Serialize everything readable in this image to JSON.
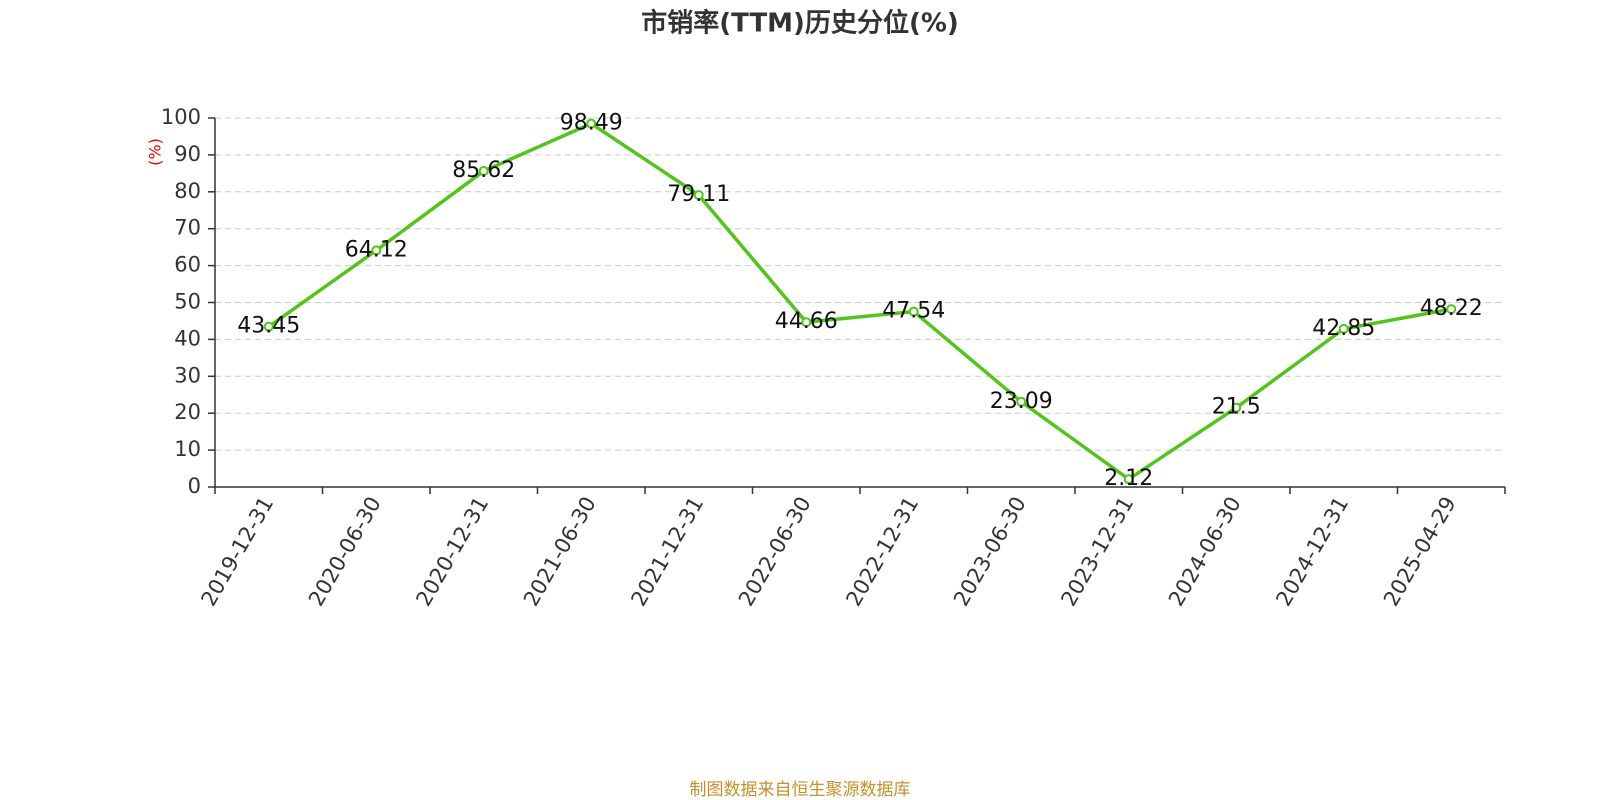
{
  "chart_data": {
    "type": "line",
    "title": "市销率(TTM)历史分位(%)",
    "ylabel": "(%)",
    "categories": [
      "2019-12-31",
      "2020-06-30",
      "2020-12-31",
      "2021-06-30",
      "2021-12-31",
      "2022-06-30",
      "2022-12-31",
      "2023-06-30",
      "2023-12-31",
      "2024-06-30",
      "2024-12-31",
      "2025-04-29"
    ],
    "series": [
      {
        "name": "市销率(TTM)历史分位",
        "color": "#52c41a",
        "values": [
          43.45,
          64.12,
          85.62,
          98.49,
          79.11,
          44.66,
          47.54,
          23.09,
          2.12,
          21.5,
          42.85,
          48.22
        ]
      }
    ],
    "ylim": [
      0,
      100
    ],
    "yticks": [
      0,
      10,
      20,
      30,
      40,
      50,
      60,
      70,
      80,
      90,
      100
    ],
    "grid": true,
    "source": "制图数据来自恒生聚源数据库"
  }
}
